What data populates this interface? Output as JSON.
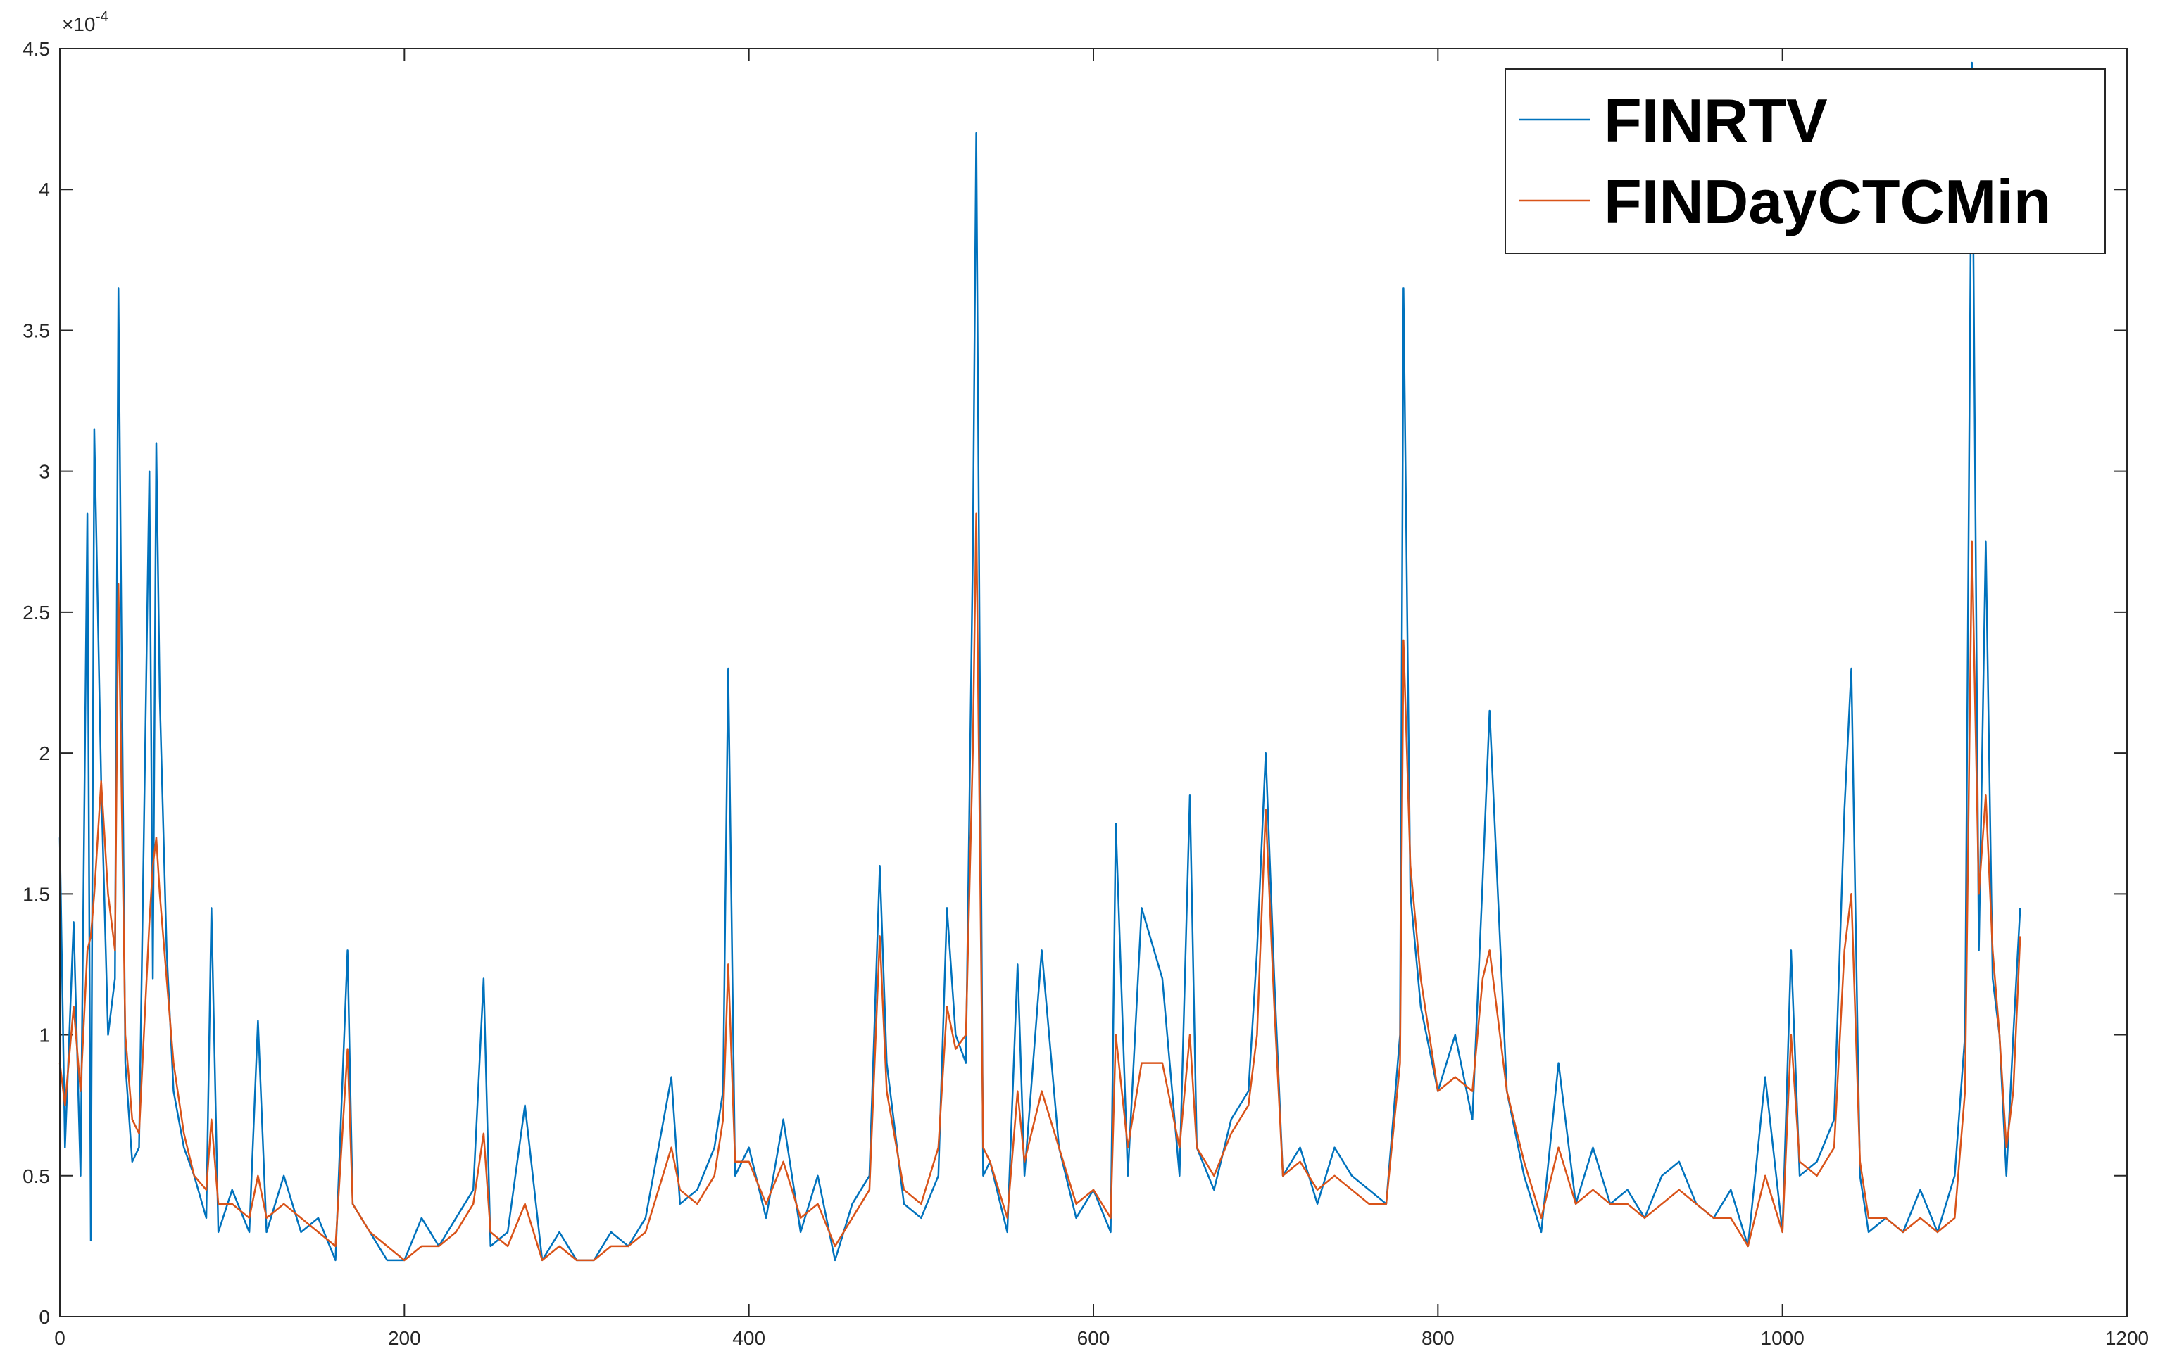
{
  "chart_data": {
    "type": "line",
    "y_multiplier_base": "×10",
    "y_multiplier_exp": "-4",
    "xlim": [
      0,
      1200
    ],
    "xticks": [
      0,
      200,
      400,
      600,
      800,
      1000,
      1200
    ],
    "ylim": [
      0,
      4.5
    ],
    "yticks": [
      0,
      0.5,
      1,
      1.5,
      2,
      2.5,
      3,
      3.5,
      4,
      4.5
    ],
    "legend": "northeast",
    "grid": false,
    "x": [
      0,
      3,
      8,
      12,
      16,
      18,
      20,
      24,
      28,
      32,
      34,
      38,
      42,
      46,
      52,
      54,
      56,
      58,
      62,
      66,
      72,
      78,
      85,
      88,
      92,
      100,
      110,
      115,
      120,
      130,
      140,
      150,
      160,
      167,
      170,
      180,
      190,
      200,
      210,
      220,
      230,
      240,
      246,
      250,
      260,
      270,
      280,
      290,
      300,
      310,
      320,
      330,
      340,
      355,
      360,
      370,
      380,
      385,
      388,
      392,
      400,
      410,
      420,
      430,
      440,
      450,
      460,
      470,
      476,
      480,
      490,
      500,
      510,
      515,
      520,
      526,
      530,
      532,
      536,
      540,
      550,
      556,
      560,
      570,
      580,
      590,
      600,
      610,
      613,
      620,
      628,
      640,
      650,
      656,
      660,
      670,
      680,
      690,
      695,
      700,
      705,
      710,
      720,
      730,
      740,
      750,
      760,
      770,
      778,
      780,
      784,
      790,
      800,
      810,
      820,
      826,
      830,
      840,
      850,
      860,
      870,
      880,
      890,
      900,
      910,
      920,
      930,
      940,
      950,
      960,
      970,
      980,
      990,
      1000,
      1005,
      1010,
      1020,
      1030,
      1036,
      1040,
      1045,
      1050,
      1060,
      1070,
      1080,
      1090,
      1100,
      1106,
      1110,
      1114,
      1118,
      1122,
      1126,
      1130,
      1134,
      1138
    ],
    "series": [
      {
        "name": "FINRTV",
        "color": "#0072bd",
        "values": [
          1.7,
          0.6,
          1.4,
          0.5,
          2.85,
          0.27,
          3.15,
          1.9,
          1.0,
          1.2,
          3.65,
          0.9,
          0.55,
          0.6,
          3.0,
          1.2,
          3.1,
          2.2,
          1.3,
          0.8,
          0.6,
          0.5,
          0.35,
          1.45,
          0.3,
          0.45,
          0.3,
          1.05,
          0.3,
          0.5,
          0.3,
          0.35,
          0.2,
          1.3,
          0.4,
          0.3,
          0.2,
          0.2,
          0.35,
          0.25,
          0.35,
          0.45,
          1.2,
          0.25,
          0.3,
          0.75,
          0.2,
          0.3,
          0.2,
          0.2,
          0.3,
          0.25,
          0.35,
          0.85,
          0.4,
          0.45,
          0.6,
          0.8,
          2.3,
          0.5,
          0.6,
          0.35,
          0.7,
          0.3,
          0.5,
          0.2,
          0.4,
          0.5,
          1.6,
          0.9,
          0.4,
          0.35,
          0.5,
          1.45,
          1.0,
          0.9,
          2.7,
          4.2,
          0.5,
          0.55,
          0.3,
          1.25,
          0.5,
          1.3,
          0.6,
          0.35,
          0.45,
          0.3,
          1.75,
          0.5,
          1.45,
          1.2,
          0.5,
          1.85,
          0.6,
          0.45,
          0.7,
          0.8,
          1.3,
          2.0,
          1.2,
          0.5,
          0.6,
          0.4,
          0.6,
          0.5,
          0.45,
          0.4,
          1.0,
          3.65,
          1.5,
          1.1,
          0.8,
          1.0,
          0.7,
          1.55,
          2.15,
          0.8,
          0.5,
          0.3,
          0.9,
          0.4,
          0.6,
          0.4,
          0.45,
          0.35,
          0.5,
          0.55,
          0.4,
          0.35,
          0.45,
          0.25,
          0.85,
          0.3,
          1.3,
          0.5,
          0.55,
          0.7,
          1.8,
          2.3,
          0.5,
          0.3,
          0.35,
          0.3,
          0.45,
          0.3,
          0.5,
          1.0,
          4.45,
          1.3,
          2.75,
          1.2,
          1.0,
          0.5,
          1.0,
          1.45
        ]
      },
      {
        "name": "FINDayCTCMin",
        "color": "#d95319",
        "values": [
          0.9,
          0.75,
          1.1,
          0.8,
          1.3,
          1.35,
          1.5,
          1.9,
          1.5,
          1.3,
          2.6,
          1.0,
          0.7,
          0.65,
          1.4,
          1.6,
          1.7,
          1.5,
          1.2,
          0.9,
          0.65,
          0.5,
          0.45,
          0.7,
          0.4,
          0.4,
          0.35,
          0.5,
          0.35,
          0.4,
          0.35,
          0.3,
          0.25,
          0.95,
          0.4,
          0.3,
          0.25,
          0.2,
          0.25,
          0.25,
          0.3,
          0.4,
          0.65,
          0.3,
          0.25,
          0.4,
          0.2,
          0.25,
          0.2,
          0.2,
          0.25,
          0.25,
          0.3,
          0.6,
          0.45,
          0.4,
          0.5,
          0.7,
          1.25,
          0.55,
          0.55,
          0.4,
          0.55,
          0.35,
          0.4,
          0.25,
          0.35,
          0.45,
          1.35,
          0.8,
          0.45,
          0.4,
          0.6,
          1.1,
          0.95,
          1.0,
          2.0,
          2.85,
          0.6,
          0.55,
          0.35,
          0.8,
          0.55,
          0.8,
          0.6,
          0.4,
          0.45,
          0.35,
          1.0,
          0.6,
          0.9,
          0.9,
          0.6,
          1.0,
          0.6,
          0.5,
          0.65,
          0.75,
          1.0,
          1.8,
          1.1,
          0.5,
          0.55,
          0.45,
          0.5,
          0.45,
          0.4,
          0.4,
          0.9,
          2.4,
          1.6,
          1.2,
          0.8,
          0.85,
          0.8,
          1.2,
          1.3,
          0.8,
          0.55,
          0.35,
          0.6,
          0.4,
          0.45,
          0.4,
          0.4,
          0.35,
          0.4,
          0.45,
          0.4,
          0.35,
          0.35,
          0.25,
          0.5,
          0.3,
          1.0,
          0.55,
          0.5,
          0.6,
          1.3,
          1.5,
          0.55,
          0.35,
          0.35,
          0.3,
          0.35,
          0.3,
          0.35,
          0.8,
          2.75,
          1.5,
          1.85,
          1.3,
          1.0,
          0.6,
          0.8,
          1.35
        ]
      }
    ]
  }
}
